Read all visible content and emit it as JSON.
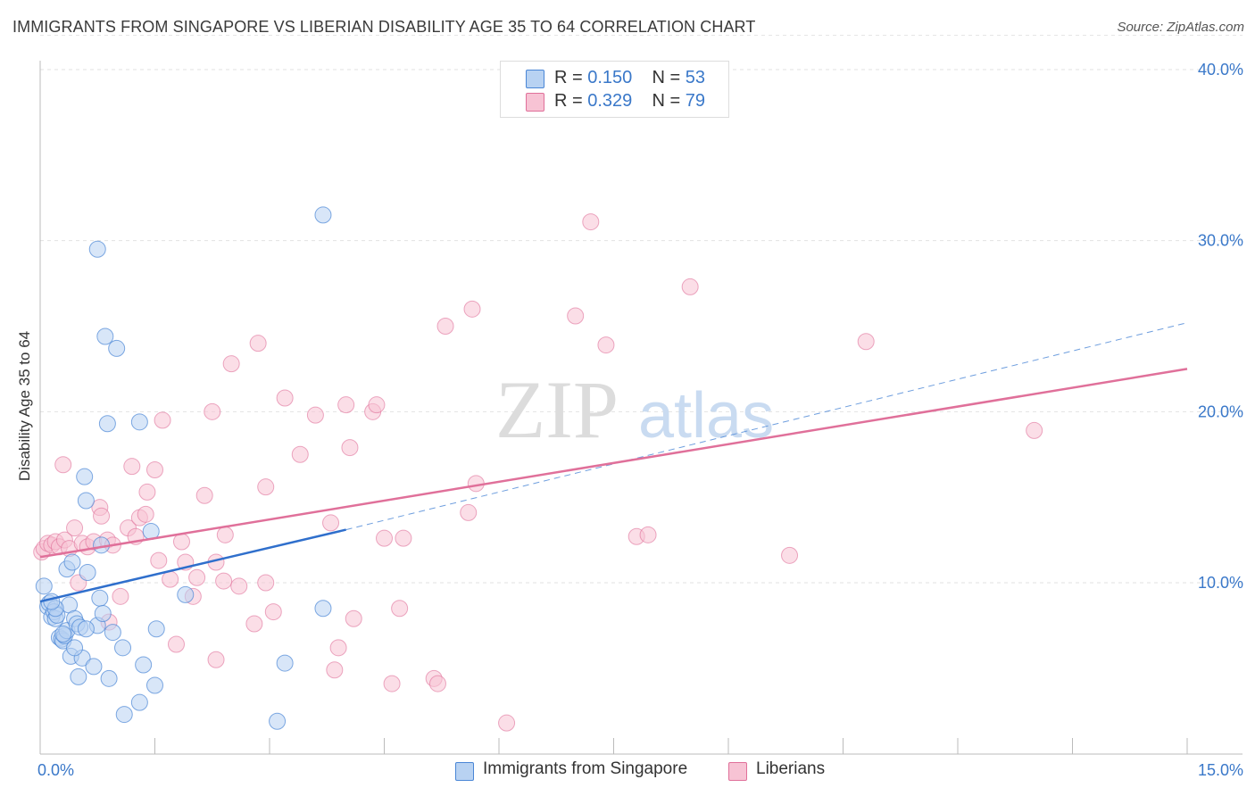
{
  "header": {
    "title": "IMMIGRANTS FROM SINGAPORE VS LIBERIAN DISABILITY AGE 35 TO 64 CORRELATION CHART",
    "source": "Source: ZipAtlas.com"
  },
  "watermark": {
    "zip": "ZIP",
    "atlas": "atlas"
  },
  "legend": {
    "rows": [
      {
        "r_label": "R =",
        "r_value": "0.150",
        "n_label": "N =",
        "n_value": "53"
      },
      {
        "r_label": "R =",
        "r_value": "0.329",
        "n_label": "N =",
        "n_value": "79"
      }
    ]
  },
  "bottom_legend": {
    "items": [
      "Immigrants from Singapore",
      "Liberians"
    ]
  },
  "chart_data": {
    "type": "scatter",
    "title": "IMMIGRANTS FROM SINGAPORE VS LIBERIAN DISABILITY AGE 35 TO 64 CORRELATION CHART",
    "xlabel": "",
    "ylabel": "Disability Age 35 to 64",
    "xlim": [
      0,
      15
    ],
    "ylim": [
      0,
      42
    ],
    "x_tick_labels": [
      "0.0%",
      "15.0%"
    ],
    "y_tick_labels": [
      "10.0%",
      "20.0%",
      "30.0%",
      "40.0%"
    ],
    "y_ticks": [
      10,
      20,
      30,
      40
    ],
    "grid": "horizontal dashed",
    "legend_position": "top-center",
    "colors": {
      "blue": "#4a86d6",
      "blue_fill": "#b8d2f2",
      "pink": "#e0709a",
      "pink_fill": "#f7c3d4"
    },
    "series": [
      {
        "name": "Immigrants from Singapore",
        "color": "#4a86d6",
        "points": [
          [
            0.05,
            9.8
          ],
          [
            0.1,
            8.6
          ],
          [
            0.12,
            8.8
          ],
          [
            0.15,
            8.0
          ],
          [
            0.18,
            8.3
          ],
          [
            0.2,
            7.9
          ],
          [
            0.22,
            8.1
          ],
          [
            0.25,
            6.8
          ],
          [
            0.28,
            6.7
          ],
          [
            0.3,
            6.6
          ],
          [
            0.32,
            6.9
          ],
          [
            0.35,
            10.8
          ],
          [
            0.35,
            7.2
          ],
          [
            0.38,
            8.7
          ],
          [
            0.4,
            5.7
          ],
          [
            0.42,
            11.2
          ],
          [
            0.45,
            7.9
          ],
          [
            0.48,
            7.6
          ],
          [
            0.5,
            4.5
          ],
          [
            0.52,
            7.4
          ],
          [
            0.55,
            5.6
          ],
          [
            0.58,
            16.2
          ],
          [
            0.6,
            14.8
          ],
          [
            0.62,
            10.6
          ],
          [
            0.7,
            5.1
          ],
          [
            0.75,
            7.5
          ],
          [
            0.78,
            9.1
          ],
          [
            0.8,
            12.2
          ],
          [
            0.82,
            8.2
          ],
          [
            0.85,
            24.4
          ],
          [
            0.88,
            19.3
          ],
          [
            0.9,
            4.4
          ],
          [
            0.95,
            7.1
          ],
          [
            1.0,
            23.7
          ],
          [
            1.08,
            6.2
          ],
          [
            1.1,
            2.3
          ],
          [
            1.3,
            3.0
          ],
          [
            1.3,
            19.4
          ],
          [
            1.35,
            5.2
          ],
          [
            1.45,
            13.0
          ],
          [
            1.5,
            4.0
          ],
          [
            1.52,
            7.3
          ],
          [
            1.9,
            9.3
          ],
          [
            3.2,
            5.3
          ],
          [
            3.7,
            8.5
          ],
          [
            3.7,
            31.5
          ],
          [
            3.1,
            1.9
          ],
          [
            0.75,
            29.5
          ],
          [
            0.2,
            8.5
          ],
          [
            0.3,
            7.0
          ],
          [
            0.45,
            6.2
          ],
          [
            0.6,
            7.3
          ],
          [
            0.15,
            8.9
          ]
        ],
        "trend": {
          "x": [
            0,
            4.0
          ],
          "y": [
            8.9,
            13.1
          ],
          "dashed_ext": {
            "x": [
              4.0,
              15.0
            ],
            "y": [
              13.1,
              25.2
            ]
          }
        }
      },
      {
        "name": "Liberians",
        "color": "#e0709a",
        "points": [
          [
            0.02,
            11.8
          ],
          [
            0.05,
            12.0
          ],
          [
            0.1,
            12.3
          ],
          [
            0.15,
            12.2
          ],
          [
            0.2,
            12.4
          ],
          [
            0.25,
            12.1
          ],
          [
            0.3,
            16.9
          ],
          [
            0.32,
            12.5
          ],
          [
            0.38,
            12.0
          ],
          [
            0.45,
            13.2
          ],
          [
            0.5,
            10.0
          ],
          [
            0.55,
            12.3
          ],
          [
            0.62,
            12.1
          ],
          [
            0.7,
            12.4
          ],
          [
            0.78,
            14.4
          ],
          [
            0.8,
            13.9
          ],
          [
            0.88,
            12.5
          ],
          [
            0.9,
            7.7
          ],
          [
            0.95,
            12.2
          ],
          [
            1.05,
            9.2
          ],
          [
            1.15,
            13.2
          ],
          [
            1.2,
            16.8
          ],
          [
            1.25,
            12.7
          ],
          [
            1.3,
            13.8
          ],
          [
            1.38,
            14.0
          ],
          [
            1.4,
            15.3
          ],
          [
            1.5,
            16.6
          ],
          [
            1.55,
            11.3
          ],
          [
            1.6,
            19.5
          ],
          [
            1.7,
            10.2
          ],
          [
            1.78,
            6.4
          ],
          [
            1.85,
            12.4
          ],
          [
            1.9,
            11.2
          ],
          [
            2.0,
            9.2
          ],
          [
            2.05,
            10.3
          ],
          [
            2.15,
            15.1
          ],
          [
            2.25,
            20.0
          ],
          [
            2.3,
            5.5
          ],
          [
            2.3,
            11.2
          ],
          [
            2.4,
            10.1
          ],
          [
            2.42,
            12.8
          ],
          [
            2.5,
            22.8
          ],
          [
            2.6,
            9.8
          ],
          [
            2.8,
            7.6
          ],
          [
            2.85,
            24.0
          ],
          [
            2.95,
            15.6
          ],
          [
            2.95,
            10.0
          ],
          [
            3.05,
            8.3
          ],
          [
            3.2,
            20.8
          ],
          [
            3.4,
            17.5
          ],
          [
            3.6,
            19.8
          ],
          [
            3.8,
            13.5
          ],
          [
            3.85,
            4.9
          ],
          [
            3.9,
            6.2
          ],
          [
            4.0,
            20.4
          ],
          [
            4.05,
            17.9
          ],
          [
            4.1,
            7.9
          ],
          [
            4.35,
            20.0
          ],
          [
            4.4,
            20.4
          ],
          [
            4.5,
            12.6
          ],
          [
            4.6,
            4.1
          ],
          [
            4.7,
            8.5
          ],
          [
            4.75,
            12.6
          ],
          [
            5.15,
            4.4
          ],
          [
            5.2,
            4.1
          ],
          [
            5.3,
            25.0
          ],
          [
            5.6,
            14.1
          ],
          [
            5.65,
            26.0
          ],
          [
            5.7,
            15.8
          ],
          [
            6.1,
            1.8
          ],
          [
            7.0,
            25.6
          ],
          [
            7.2,
            31.1
          ],
          [
            7.4,
            23.9
          ],
          [
            7.8,
            12.7
          ],
          [
            7.95,
            12.8
          ],
          [
            8.5,
            27.3
          ],
          [
            9.8,
            11.6
          ],
          [
            10.8,
            24.1
          ],
          [
            13.0,
            18.9
          ]
        ],
        "trend": {
          "x": [
            0,
            15.0
          ],
          "y": [
            11.5,
            22.5
          ]
        }
      }
    ]
  }
}
